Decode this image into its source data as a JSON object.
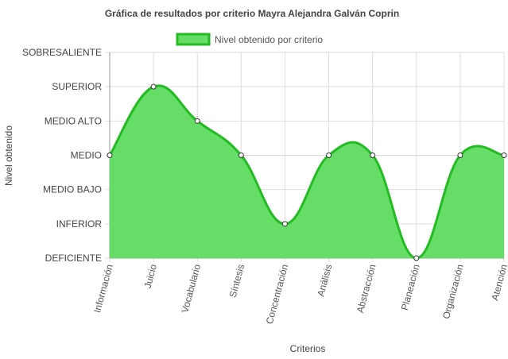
{
  "chart_data": {
    "type": "area",
    "title": "Gráfica de resultados por criterio Mayra Alejandra Galván Coprin",
    "xlabel": "Criterios",
    "ylabel": "Nivel obtenido",
    "y_levels": [
      "DEFICIENTE",
      "INFERIOR",
      "MEDIO BAJO",
      "MEDIO",
      "MEDIO ALTO",
      "SUPERIOR",
      "SOBRESALIENTE"
    ],
    "categories": [
      "Información",
      "Juicio",
      "Vocabulario",
      "Síntesis",
      "Concentración",
      "Análisis",
      "Abstracción",
      "Planeación",
      "Organización",
      "Atención"
    ],
    "series": [
      {
        "name": "Nivel obtenido por criterio",
        "values": [
          "MEDIO",
          "SUPERIOR",
          "MEDIO ALTO",
          "MEDIO",
          "INFERIOR",
          "MEDIO",
          "MEDIO",
          "DEFICIENTE",
          "MEDIO",
          "MEDIO"
        ]
      }
    ],
    "colors": {
      "fill": "#66dd66",
      "line": "#22bb22",
      "point_fill": "#ffffff",
      "point_stroke": "#333333",
      "grid": "#dddddd"
    },
    "legend_position": "top",
    "grid": true
  }
}
